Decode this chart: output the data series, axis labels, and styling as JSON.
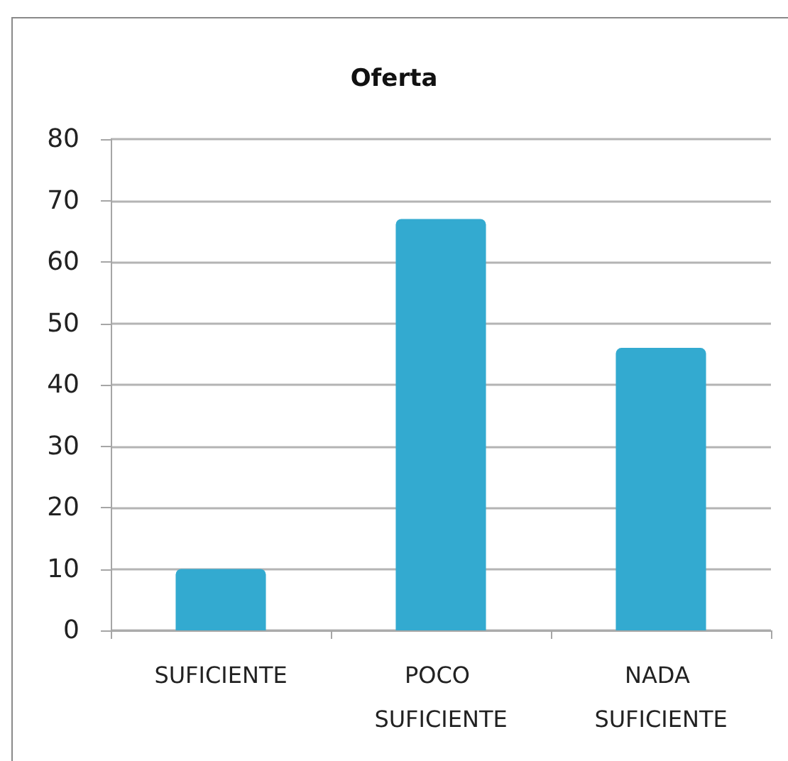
{
  "chart_data": {
    "type": "bar",
    "title": "Oferta",
    "categories": [
      "SUFICIENTE",
      "POCO SUFICIENTE",
      "NADA SUFICIENTE"
    ],
    "values": [
      10,
      67,
      46
    ],
    "color": "#33aad0",
    "ylim": [
      0,
      80
    ],
    "yticks": [
      0,
      10,
      20,
      30,
      40,
      50,
      60,
      70,
      80
    ],
    "grid": "y"
  }
}
